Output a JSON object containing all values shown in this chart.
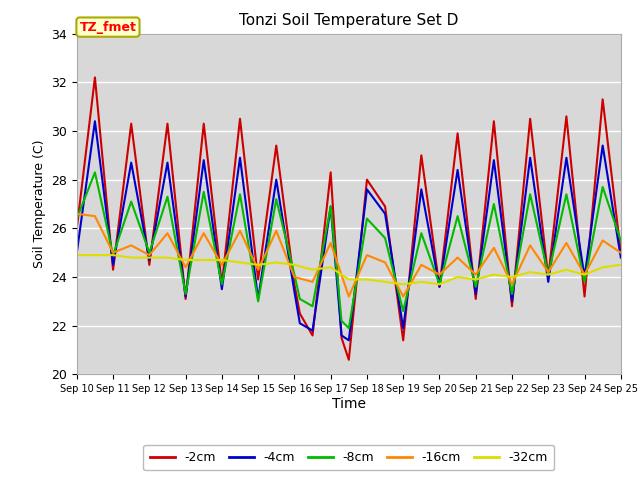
{
  "title": "Tonzi Soil Temperature Set D",
  "xlabel": "Time",
  "ylabel": "Soil Temperature (C)",
  "ylim": [
    20,
    34
  ],
  "xlim": [
    0,
    15
  ],
  "plot_bg_color": "#d8d8d8",
  "fig_bg_color": "#ffffff",
  "grid_color": "#ffffff",
  "annotation_text": "TZ_fmet",
  "annotation_bg": "#ffffcc",
  "annotation_border": "#aaaa00",
  "x_ticks": [
    0,
    1,
    2,
    3,
    4,
    5,
    6,
    7,
    8,
    9,
    10,
    11,
    12,
    13,
    14,
    15
  ],
  "x_labels": [
    "Sep 10",
    "Sep 11",
    "Sep 12",
    "Sep 13",
    "Sep 14",
    "Sep 15",
    "Sep 16",
    "Sep 17",
    "Sep 18",
    "Sep 19",
    "Sep 20",
    "Sep 21",
    "Sep 22",
    "Sep 23",
    "Sep 24",
    "Sep 25"
  ],
  "y_ticks": [
    20,
    22,
    24,
    26,
    28,
    30,
    32,
    34
  ],
  "series": {
    "-2cm": {
      "color": "#cc0000",
      "linewidth": 1.5,
      "x": [
        0,
        0.5,
        1,
        1.5,
        2,
        2.5,
        3,
        3.5,
        4,
        4.5,
        5,
        5.5,
        6,
        6.15,
        6.5,
        7,
        7.3,
        7.5,
        8,
        8.5,
        9,
        9.5,
        10,
        10.5,
        11,
        11.5,
        12,
        12.5,
        13,
        13.5,
        14,
        14.5,
        15
      ],
      "y": [
        26.0,
        32.2,
        24.3,
        30.3,
        24.5,
        30.3,
        23.1,
        30.3,
        23.7,
        30.5,
        23.9,
        29.4,
        23.7,
        22.5,
        21.6,
        28.3,
        21.5,
        20.6,
        28.0,
        26.9,
        21.4,
        29.0,
        23.6,
        29.9,
        23.1,
        30.4,
        22.8,
        30.5,
        24.0,
        30.6,
        23.2,
        31.3,
        25.0
      ]
    },
    "-4cm": {
      "color": "#0000cc",
      "linewidth": 1.5,
      "x": [
        0,
        0.5,
        1,
        1.5,
        2,
        2.5,
        3,
        3.5,
        4,
        4.5,
        5,
        5.5,
        6,
        6.15,
        6.5,
        7,
        7.3,
        7.5,
        8,
        8.5,
        9,
        9.5,
        10,
        10.5,
        11,
        11.5,
        12,
        12.5,
        13,
        13.5,
        14,
        14.5,
        15
      ],
      "y": [
        25.0,
        30.4,
        24.5,
        28.7,
        24.7,
        28.7,
        23.2,
        28.8,
        23.5,
        28.9,
        23.1,
        28.0,
        23.4,
        22.1,
        21.8,
        26.9,
        21.6,
        21.4,
        27.6,
        26.6,
        21.9,
        27.6,
        23.6,
        28.4,
        23.3,
        28.8,
        23.0,
        28.9,
        23.8,
        28.9,
        24.0,
        29.4,
        24.8
      ]
    },
    "-8cm": {
      "color": "#00bb00",
      "linewidth": 1.5,
      "x": [
        0,
        0.5,
        1,
        1.5,
        2,
        2.5,
        3,
        3.5,
        4,
        4.5,
        5,
        5.5,
        6,
        6.15,
        6.5,
        7,
        7.3,
        7.5,
        8,
        8.5,
        9,
        9.5,
        10,
        10.5,
        11,
        11.5,
        12,
        12.5,
        13,
        13.5,
        14,
        14.5,
        15
      ],
      "y": [
        26.4,
        28.3,
        24.9,
        27.1,
        25.0,
        27.3,
        23.3,
        27.5,
        23.7,
        27.4,
        23.0,
        27.2,
        24.1,
        23.1,
        22.8,
        26.9,
        22.2,
        21.9,
        26.4,
        25.6,
        22.6,
        25.8,
        23.7,
        26.5,
        23.6,
        27.0,
        23.3,
        27.4,
        24.1,
        27.4,
        23.8,
        27.7,
        25.5
      ]
    },
    "-16cm": {
      "color": "#ff8800",
      "linewidth": 1.5,
      "x": [
        0,
        0.5,
        1,
        1.5,
        2,
        2.5,
        3,
        3.5,
        4,
        4.5,
        5,
        5.5,
        6,
        6.5,
        7,
        7.5,
        8,
        8.5,
        9,
        9.5,
        10,
        10.5,
        11,
        11.5,
        12,
        12.5,
        13,
        13.5,
        14,
        14.5,
        15
      ],
      "y": [
        26.6,
        26.5,
        25.0,
        25.3,
        24.9,
        25.8,
        24.4,
        25.8,
        24.5,
        25.9,
        24.3,
        25.9,
        24.0,
        23.8,
        25.4,
        23.2,
        24.9,
        24.6,
        23.2,
        24.5,
        24.1,
        24.8,
        24.1,
        25.2,
        23.7,
        25.3,
        24.2,
        25.4,
        24.1,
        25.5,
        25.0
      ]
    },
    "-32cm": {
      "color": "#dddd00",
      "linewidth": 1.5,
      "x": [
        0,
        0.5,
        1,
        1.5,
        2,
        2.5,
        3,
        3.5,
        4,
        4.5,
        5,
        5.5,
        6,
        6.5,
        7,
        7.5,
        8,
        8.5,
        9,
        9.5,
        10,
        10.5,
        11,
        11.5,
        12,
        12.5,
        13,
        13.5,
        14,
        14.5,
        15
      ],
      "y": [
        24.9,
        24.9,
        24.9,
        24.8,
        24.8,
        24.8,
        24.7,
        24.7,
        24.7,
        24.6,
        24.5,
        24.6,
        24.5,
        24.3,
        24.4,
        23.9,
        23.9,
        23.8,
        23.7,
        23.8,
        23.7,
        24.0,
        23.9,
        24.1,
        24.0,
        24.2,
        24.1,
        24.3,
        24.1,
        24.4,
        24.5
      ]
    }
  }
}
